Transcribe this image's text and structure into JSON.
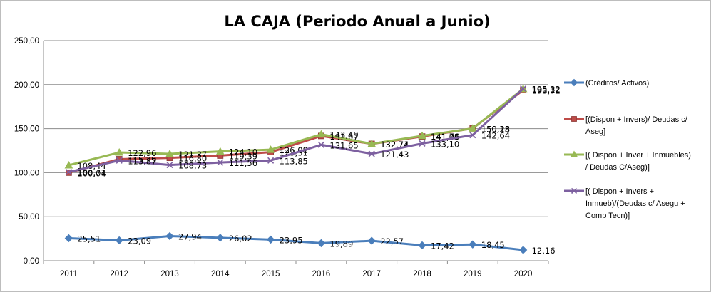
{
  "chart_data": {
    "type": "line",
    "title": "LA CAJA (Periodo Anual a Junio)",
    "xlabel": "",
    "ylabel": "",
    "ylim": [
      0,
      250
    ],
    "y_ticks": [
      "0,00",
      "50,00",
      "100,00",
      "150,00",
      "200,00",
      "250,00"
    ],
    "categories": [
      "2011",
      "2012",
      "2013",
      "2014",
      "2015",
      "2016",
      "2017",
      "2018",
      "2019",
      "2020"
    ],
    "grid": true,
    "legend_position": "right",
    "series": [
      {
        "name": "(Créditos/ Activos)",
        "legend_lines": [
          "(Créditos/ Activos)"
        ],
        "color": "#4a7ebb",
        "marker": "diamond",
        "values": [
          25.51,
          23.09,
          27.94,
          26.02,
          23.95,
          19.89,
          22.57,
          17.42,
          18.45,
          12.16
        ],
        "labels": [
          "25,51",
          "23,09",
          "27,94",
          "26,02",
          "23,95",
          "19,89",
          "22,57",
          "17,42",
          "18,45",
          "12,16"
        ]
      },
      {
        "name": "[(Dispon + Invers)/ Deudas c/ Aseg]",
        "legend_lines": [
          "[(Dispon + Invers)/ Deudas c/",
          "Aseg]"
        ],
        "color": "#be4b48",
        "marker": "square",
        "values": [
          100.04,
          115.29,
          116.8,
          119.39,
          123.31,
          141.67,
          132.71,
          141.05,
          150.28,
          193.71
        ],
        "labels": [
          "100,04",
          "115,29",
          "116,80",
          "119,39",
          "123,31",
          "141,67",
          "132,71",
          "141,05",
          "150,28",
          "193,71"
        ]
      },
      {
        "name": "[( Dispon + Inver + Inmuebles) / Deudas C/Aseg)]",
        "legend_lines": [
          "[( Dispon + Inver + Inmuebles)",
          "/ Deudas C/Aseg)]"
        ],
        "color": "#98b954",
        "marker": "triangle",
        "values": [
          108.44,
          122.96,
          121.37,
          124.1,
          126.08,
          143.49,
          132.74,
          141.76,
          150.15,
          195.12
        ],
        "labels": [
          "108,44",
          "122,96",
          "121,37",
          "124,10",
          "126,08",
          "143,49",
          "132,74",
          "141,76",
          "150,15",
          "195,12"
        ]
      },
      {
        "name": "[( Dispon + Invers + Inmueb)/(Deudas c/ Asegu + Comp Tecn)]",
        "legend_lines": [
          "[( Dispon + Invers +",
          "Inmueb)/(Deudas c/ Asegu +",
          "Comp Tecn)]"
        ],
        "color": "#7d60a0",
        "marker": "x",
        "values": [
          100.71,
          113.87,
          108.73,
          111.56,
          113.85,
          131.65,
          121.43,
          133.1,
          142.64,
          195.32
        ],
        "labels": [
          "100,71",
          "113,87",
          "108,73",
          "111,56",
          "113,85",
          "131,65",
          "121,43",
          "133,10",
          "142,64",
          "195,32"
        ]
      }
    ]
  }
}
